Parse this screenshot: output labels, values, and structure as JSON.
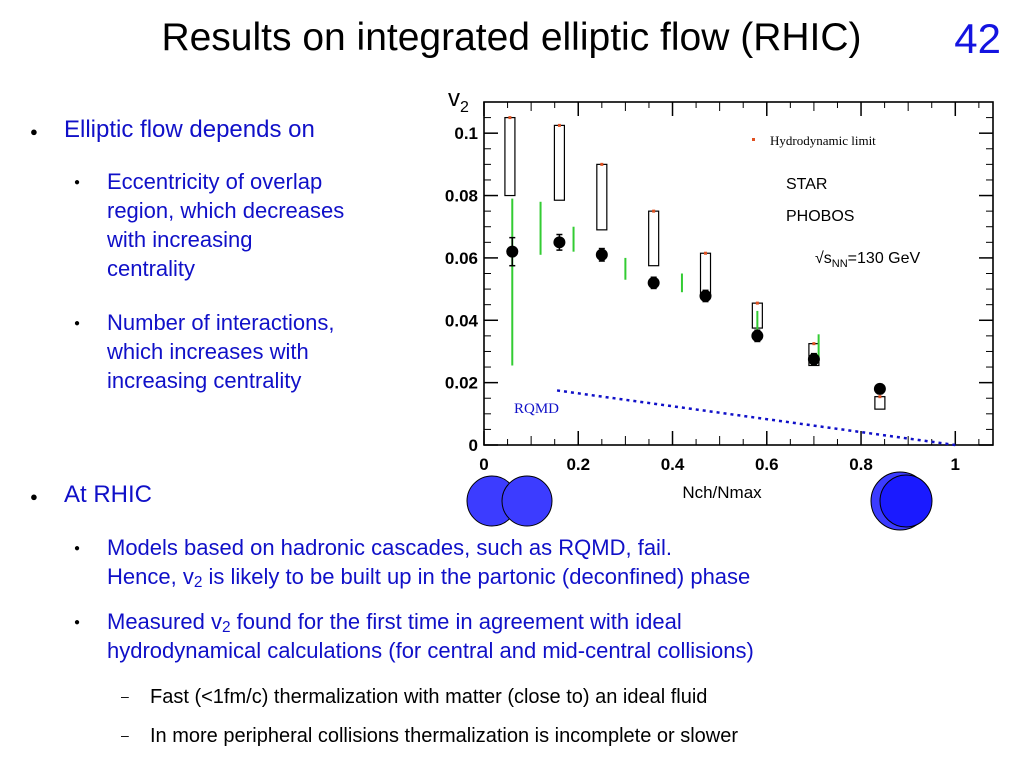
{
  "slide": {
    "title": "Results on integrated elliptic flow (RHIC)",
    "number": "42"
  },
  "bullets": {
    "b1": "Elliptic flow depends on",
    "b1_sub1": [
      "Eccentricity of overlap",
      "region, which decreases",
      "with increasing",
      "centrality"
    ],
    "b1_sub2": [
      "Number of interactions,",
      "which increases with",
      "increasing centrality"
    ],
    "b2": "At RHIC",
    "b2_sub1_line1": "Models based on hadronic cascades, such as RQMD, fail.",
    "b2_sub1_line2_pre": "Hence, v",
    "b2_sub1_line2_sub": "2",
    "b2_sub1_line2_post": " is likely to be built up in the partonic (deconfined) phase",
    "b2_sub2_line1_pre": "Measured v",
    "b2_sub2_line1_sub": "2",
    "b2_sub2_line1_post": " found for the first time in agreement with ideal",
    "b2_sub2_line2": "hydrodynamical calculations (for central and mid-central collisions)",
    "b2_sub2_sub1": "Fast (<1fm/c) thermalization with matter (close to) an ideal fluid",
    "b2_sub2_sub2": "In more peripheral collisions thermalization is incomplete or slower"
  },
  "chart_data": {
    "type": "scatter",
    "ylabel_main": "v",
    "ylabel_sub": "2",
    "xlabel": "Nch/Nmax",
    "xlim": [
      0,
      1.08
    ],
    "ylim": [
      0,
      0.11
    ],
    "xticks": [
      "0",
      "0.2",
      "0.4",
      "0.6",
      "0.8",
      "1"
    ],
    "yticks": [
      "0",
      "0.02",
      "0.04",
      "0.06",
      "0.08",
      "0.1"
    ],
    "legend": [
      "Hydrodynamic limit",
      "STAR",
      "PHOBOS"
    ],
    "energy_label_pre": "√s",
    "energy_label_sub": "NN",
    "energy_label_post": "=130 GeV",
    "rqmd_label": "RQMD",
    "colors": {
      "hydro": "#e05020",
      "star": "#000000",
      "phobos": "#33cc33",
      "rqmd": "#1010c8",
      "nucleus": "#3c3cff"
    },
    "hydro_limit": [
      {
        "x": 0.055,
        "low": 0.08,
        "high": 0.105
      },
      {
        "x": 0.16,
        "low": 0.0785,
        "high": 0.1025
      },
      {
        "x": 0.25,
        "low": 0.069,
        "high": 0.09
      },
      {
        "x": 0.36,
        "low": 0.0575,
        "high": 0.075
      },
      {
        "x": 0.47,
        "low": 0.0475,
        "high": 0.0615
      },
      {
        "x": 0.58,
        "low": 0.0375,
        "high": 0.0455
      },
      {
        "x": 0.7,
        "low": 0.0255,
        "high": 0.0325
      },
      {
        "x": 0.84,
        "low": 0.0115,
        "high": 0.0155
      }
    ],
    "star": [
      {
        "x": 0.06,
        "y": 0.062,
        "err": 0.0045
      },
      {
        "x": 0.16,
        "y": 0.065,
        "err": 0.0025
      },
      {
        "x": 0.25,
        "y": 0.061,
        "err": 0.002
      },
      {
        "x": 0.36,
        "y": 0.052,
        "err": 0.0018
      },
      {
        "x": 0.47,
        "y": 0.0478,
        "err": 0.0018
      },
      {
        "x": 0.58,
        "y": 0.035,
        "err": 0.0018
      },
      {
        "x": 0.7,
        "y": 0.0275,
        "err": 0.0018
      },
      {
        "x": 0.84,
        "y": 0.018,
        "err": 0.0015
      }
    ],
    "phobos": [
      {
        "x": 0.06,
        "low": 0.0255,
        "high": 0.079
      },
      {
        "x": 0.12,
        "low": 0.061,
        "high": 0.078
      },
      {
        "x": 0.19,
        "low": 0.062,
        "high": 0.07
      },
      {
        "x": 0.3,
        "low": 0.053,
        "high": 0.06
      },
      {
        "x": 0.42,
        "low": 0.049,
        "high": 0.055
      },
      {
        "x": 0.58,
        "low": 0.034,
        "high": 0.043
      },
      {
        "x": 0.71,
        "low": 0.027,
        "high": 0.0355
      }
    ],
    "rqmd": {
      "x": [
        0.155,
        1.0
      ],
      "y": [
        0.0175,
        0.0
      ]
    }
  }
}
